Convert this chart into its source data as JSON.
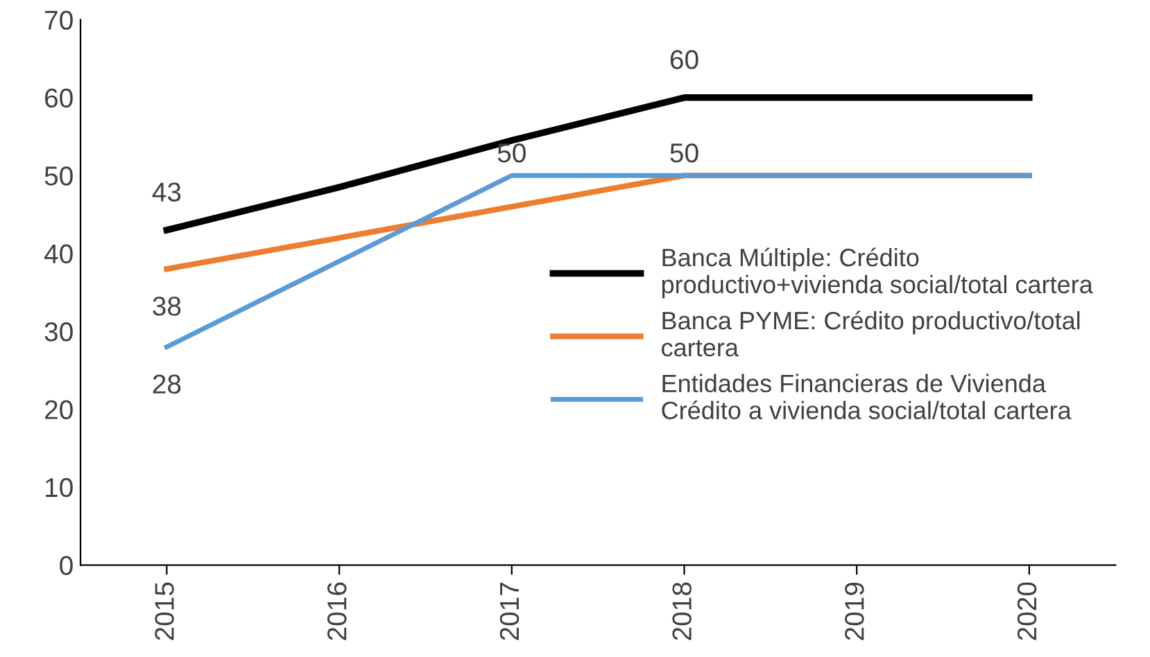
{
  "chart_data": {
    "type": "line",
    "categories": [
      "2015",
      "2016",
      "2017",
      "2018",
      "2019",
      "2020"
    ],
    "series": [
      {
        "name": "Banca Múltiple: Crédito\nproductivo+vivienda social/total cartera",
        "color": "#000000",
        "values": [
          43,
          48.5,
          54.5,
          60,
          60,
          60
        ],
        "value_labels": [
          "43",
          null,
          null,
          "60",
          null,
          null
        ]
      },
      {
        "name": "Banca PYME: Crédito productivo/total\ncartera",
        "color": "#ed7d31",
        "values": [
          38,
          42,
          46,
          50,
          50,
          50
        ],
        "value_labels": [
          "38",
          null,
          null,
          "50",
          null,
          null
        ]
      },
      {
        "name": "Entidades Financieras de Vivienda\nCrédito a vivienda social/total cartera",
        "color": "#5b9bd5",
        "values": [
          28,
          39,
          50,
          50,
          50,
          50
        ],
        "value_labels": [
          "28",
          null,
          "50",
          null,
          null,
          null
        ]
      }
    ],
    "ylim": [
      0,
      70
    ],
    "yticks": [
      0,
      10,
      20,
      30,
      40,
      50,
      60,
      70
    ],
    "grid": false,
    "legend": "right",
    "marker": "none",
    "line_style": "solid"
  }
}
